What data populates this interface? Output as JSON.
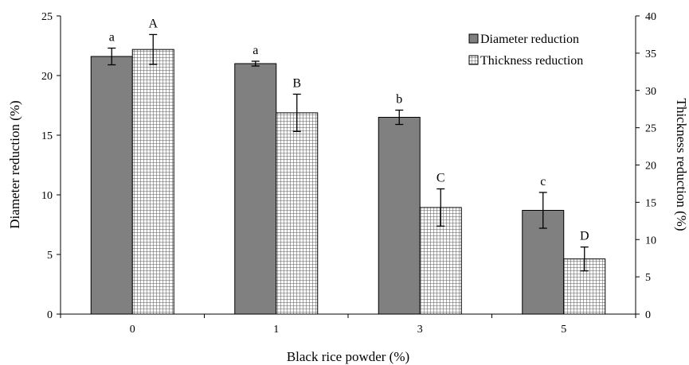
{
  "chart_data": {
    "type": "bar",
    "categories": [
      "0",
      "1",
      "3",
      "5"
    ],
    "xlabel": "Black rice powder (%)",
    "ylabel_left": "Diameter reduction (%)",
    "ylabel_right": "Thickness reduction (%)",
    "ylim_left": [
      0,
      25
    ],
    "yticks_left": [
      "0",
      "5",
      "10",
      "15",
      "20",
      "25"
    ],
    "ylim_right": [
      0,
      40
    ],
    "yticks_right": [
      "0",
      "5",
      "10",
      "15",
      "20",
      "25",
      "30",
      "35",
      "40"
    ],
    "legend_position": "top-right",
    "grid": false,
    "series": [
      {
        "name": "Diameter reduction",
        "axis": "left",
        "pattern": "solid",
        "color": "#808080",
        "values": [
          21.6,
          21.0,
          16.5,
          8.7
        ],
        "errors": [
          0.7,
          0.2,
          0.6,
          1.5
        ],
        "letters": [
          "a",
          "a",
          "b",
          "c"
        ]
      },
      {
        "name": "Thickness reduction",
        "axis": "right",
        "pattern": "grid",
        "color": "#ffffff",
        "values": [
          35.5,
          27.0,
          14.3,
          7.4
        ],
        "errors": [
          2.0,
          2.5,
          2.5,
          1.6
        ],
        "letters": [
          "A",
          "B",
          "C",
          "D"
        ]
      }
    ]
  }
}
